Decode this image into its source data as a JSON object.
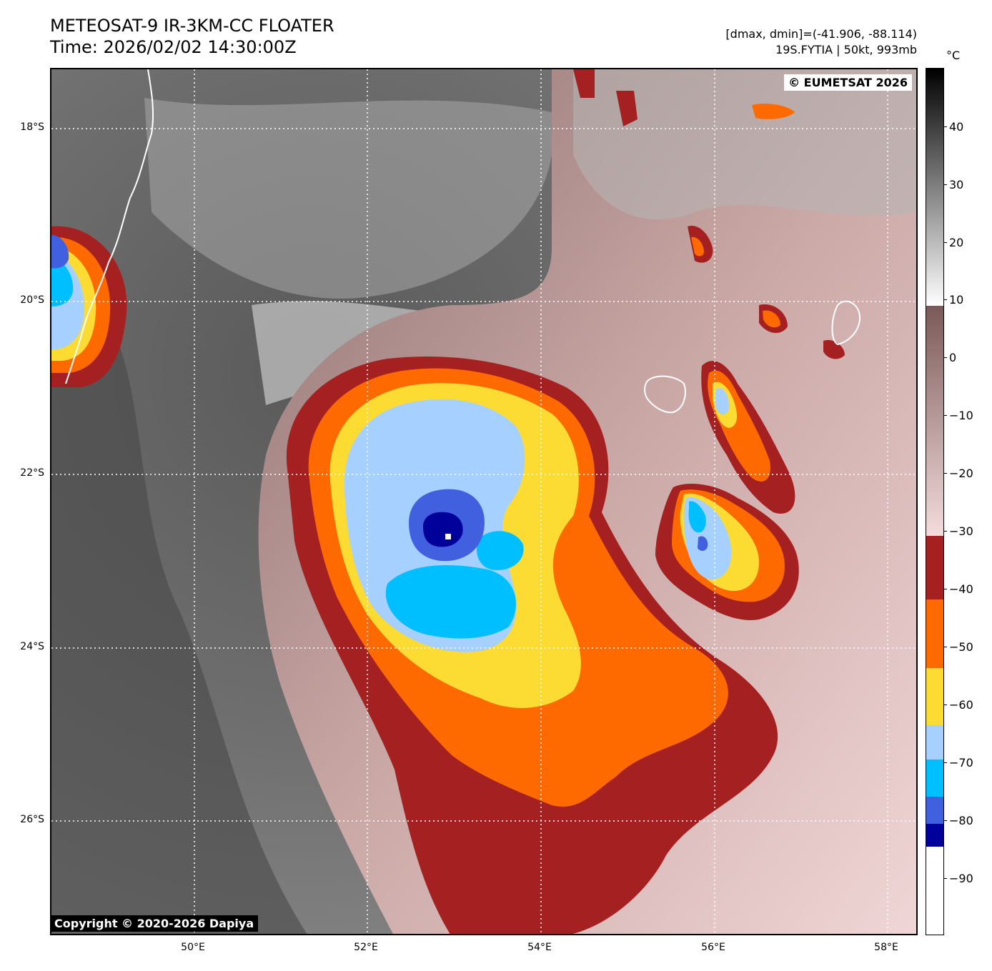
{
  "header": {
    "title_line1": "METEOSAT-9 IR-3KM-CC FLOATER",
    "title_line2": "Time: 2026/02/02 14:30:00Z",
    "info_line1": "[dmax, dmin]=(-41.906, -88.114)",
    "info_line2": "19S.FYTIA | 50kt, 993mb"
  },
  "map": {
    "lat_labels": [
      "18°S",
      "20°S",
      "22°S",
      "24°S",
      "26°S"
    ],
    "lon_labels": [
      "50°E",
      "52°E",
      "54°E",
      "56°E",
      "58°E"
    ],
    "copyright_top": "© EUMETSAT 2026",
    "copyright_bottom": "Copyright © 2020-2026 Dapiya"
  },
  "colorbar": {
    "unit": "°C",
    "ticks": [
      "40",
      "30",
      "20",
      "10",
      "0",
      "−10",
      "−20",
      "−30",
      "−40",
      "−50",
      "−60",
      "−70",
      "−80",
      "−90"
    ],
    "colors": {
      "gray_top": "#000000",
      "gray_bottom": "#ffffff",
      "brown_top": "#7a5a58",
      "pink_bottom": "#f4dcdc",
      "darkred": "#a52020",
      "orange": "#ff6a00",
      "yellow": "#fcdc32",
      "lightblue": "#a6d0ff",
      "cyan": "#00bfff",
      "blue": "#4060e0",
      "navy": "#00009a",
      "white": "#ffffff"
    }
  }
}
